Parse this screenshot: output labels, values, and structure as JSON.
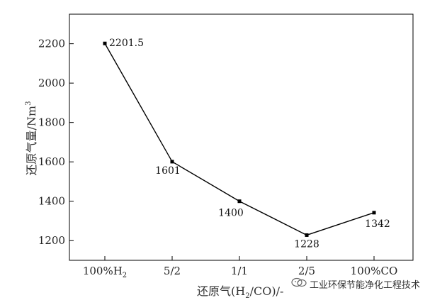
{
  "chart_data": {
    "type": "line",
    "categories": [
      "100%H2",
      "5/2",
      "1/1",
      "2/5",
      "100%CO"
    ],
    "category_labels": [
      {
        "main": "100%H",
        "sub": "2"
      },
      {
        "main": "5/2",
        "sub": ""
      },
      {
        "main": "1/1",
        "sub": ""
      },
      {
        "main": "2/5",
        "sub": ""
      },
      {
        "main": "100%CO",
        "sub": ""
      }
    ],
    "values": [
      2201.5,
      1601,
      1400,
      1228,
      1342
    ],
    "data_labels": [
      "2201.5",
      "1601",
      "1400",
      "1228",
      "1342"
    ],
    "ylim": [
      1100,
      2350
    ],
    "yticks": [
      1200,
      1400,
      1600,
      1800,
      2000,
      2200
    ],
    "ylabel": "还原气量/Nm3",
    "xlabel": "还原气(H2/CO)/-",
    "grid": false,
    "line_color": "#000000"
  },
  "axis_titles": {
    "y_main": "还原气量/Nm",
    "y_sup": "3",
    "x_main": "还原气(H",
    "x_sub": "2",
    "x_tail": "/CO)/-"
  },
  "watermark": {
    "text": "工业环保节能净化工程技术",
    "icon": "wechat-logo-icon"
  }
}
